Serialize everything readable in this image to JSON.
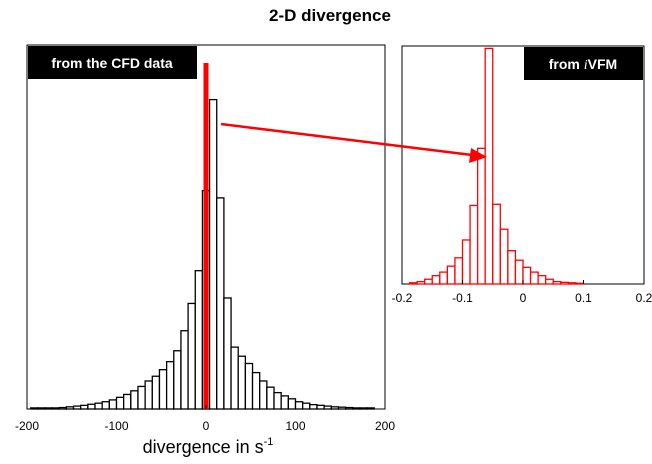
{
  "figure": {
    "title": "2-D divergence",
    "annotation_color": "#ff0000"
  },
  "chart_data": [
    {
      "type": "bar",
      "panel": "left",
      "tag": {
        "text": "from the CFD data",
        "italic_prefix": "",
        "suffix": ""
      },
      "bar_edge_color": "#000000",
      "bar_fill_color": "#ffffff",
      "xlim": [
        -200,
        200
      ],
      "ylim": [
        0,
        100
      ],
      "xticks": [
        -200,
        -100,
        0,
        100,
        200
      ],
      "xtick_labels": [
        "-200",
        "-100",
        "0",
        "100",
        "200"
      ],
      "xlabel": "divergence in s",
      "xlabel_superscript": "-1",
      "bin_width": 8,
      "bin_edges_start": -196,
      "values": [
        0.3,
        0.3,
        0.3,
        0.3,
        0.4,
        0.6,
        0.8,
        1.0,
        1.3,
        1.6,
        2.0,
        2.5,
        3.2,
        4.0,
        5.0,
        6.2,
        7.7,
        9.0,
        10.8,
        13.0,
        16.0,
        21.5,
        29.0,
        38.0,
        60.0,
        85.0,
        58.0,
        30.5,
        17.0,
        14.5,
        12.5,
        10.0,
        7.7,
        6.0,
        4.5,
        3.6,
        2.8,
        2.0,
        1.6,
        1.2,
        1.0,
        0.8,
        0.6,
        0.5,
        0.4,
        0.3,
        0.3,
        0.3
      ],
      "overlay_line": {
        "x": 0,
        "color": "#ff0000",
        "ylim": [
          0,
          100
        ]
      }
    },
    {
      "type": "bar",
      "panel": "right",
      "tag": {
        "text": "",
        "italic_prefix": "i",
        "suffix": "VFM",
        "prefix": "from "
      },
      "bar_edge_color": "#ff0000",
      "bar_fill_color": "#ffffff",
      "xlim": [
        -0.2,
        0.2
      ],
      "ylim": [
        0,
        100
      ],
      "xticks": [
        -0.2,
        -0.1,
        0,
        0.1,
        0.2
      ],
      "xtick_labels": [
        "-0.2",
        "-0.1",
        "0",
        "0.1",
        "0.2"
      ],
      "xlabel": "",
      "bin_width": 0.0125,
      "bin_edges_start": -0.1875,
      "values": [
        0.5,
        1.0,
        2.0,
        3.5,
        5.0,
        7.5,
        11.0,
        18.5,
        33.0,
        57.0,
        99.0,
        33.5,
        23.0,
        14.0,
        10.0,
        7.0,
        5.0,
        3.5,
        2.0,
        1.0,
        0.7,
        0.5,
        0.3
      ]
    }
  ],
  "arrow": {
    "color": "#ff0000",
    "from_panel": "left",
    "to_panel": "right"
  }
}
